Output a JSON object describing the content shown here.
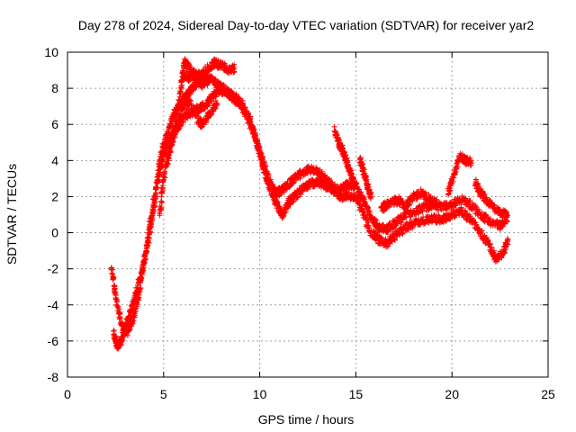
{
  "chart_data": {
    "type": "scatter",
    "title": "Day 278 of 2024, Sidereal Day-to-day VTEC variation (SDTVAR) for receiver yar2",
    "xlabel": "GPS time / hours",
    "ylabel": "SDTVAR / TECUs",
    "xlim": [
      0,
      25
    ],
    "ylim": [
      -8,
      10
    ],
    "xticks": [
      0,
      5,
      10,
      15,
      20,
      25
    ],
    "yticks": [
      -8,
      -6,
      -4,
      -2,
      0,
      2,
      4,
      6,
      8,
      10
    ],
    "grid": true,
    "marker": "+",
    "color": "#ff0000",
    "series": [
      {
        "name": "yar2",
        "note": "approximate traced bands of the dense point cloud",
        "bands": [
          [
            [
              2.3,
              -2.0
            ],
            [
              2.5,
              -3.5
            ],
            [
              2.8,
              -5.0
            ],
            [
              3.1,
              -5.5
            ],
            [
              3.4,
              -4.8
            ],
            [
              3.7,
              -3.5
            ],
            [
              4.0,
              -1.5
            ],
            [
              4.3,
              0.5
            ],
            [
              4.6,
              2.5
            ],
            [
              4.9,
              4.5
            ],
            [
              5.2,
              5.5
            ],
            [
              5.5,
              6.5
            ],
            [
              5.8,
              7.0
            ],
            [
              6.1,
              7.5
            ],
            [
              6.5,
              8.0
            ],
            [
              6.9,
              8.5
            ],
            [
              7.3,
              8.6
            ],
            [
              7.7,
              8.3
            ],
            [
              8.1,
              8.0
            ],
            [
              8.5,
              7.6
            ],
            [
              8.9,
              7.2
            ],
            [
              9.3,
              6.5
            ],
            [
              9.7,
              5.5
            ],
            [
              10.0,
              4.5
            ],
            [
              10.3,
              3.5
            ],
            [
              10.6,
              2.6
            ],
            [
              10.9,
              2.2
            ],
            [
              11.2,
              2.4
            ],
            [
              11.5,
              2.7
            ],
            [
              11.8,
              3.0
            ],
            [
              12.2,
              3.3
            ],
            [
              12.6,
              3.5
            ],
            [
              13.0,
              3.4
            ],
            [
              13.4,
              3.0
            ],
            [
              13.8,
              2.5
            ],
            [
              14.2,
              2.4
            ],
            [
              14.6,
              2.7
            ],
            [
              15.0,
              2.6
            ],
            [
              15.4,
              1.8
            ],
            [
              15.8,
              0.8
            ],
            [
              16.2,
              0.3
            ],
            [
              16.6,
              0.2
            ],
            [
              17.0,
              0.5
            ],
            [
              17.5,
              0.9
            ],
            [
              18.0,
              1.2
            ],
            [
              18.5,
              1.4
            ],
            [
              19.0,
              1.5
            ],
            [
              19.5,
              1.4
            ],
            [
              20.0,
              1.6
            ],
            [
              20.5,
              1.9
            ],
            [
              21.0,
              1.5
            ],
            [
              21.5,
              1.0
            ],
            [
              22.0,
              0.6
            ],
            [
              22.5,
              0.4
            ],
            [
              22.9,
              0.8
            ]
          ],
          [
            [
              2.4,
              -5.6
            ],
            [
              2.6,
              -6.3
            ],
            [
              2.8,
              -6.0
            ],
            [
              3.0,
              -5.2
            ],
            [
              3.3,
              -4.3
            ],
            [
              3.6,
              -3.2
            ],
            [
              3.9,
              -2.0
            ],
            [
              4.2,
              -0.5
            ],
            [
              4.5,
              1.5
            ],
            [
              4.8,
              3.5
            ],
            [
              5.1,
              4.8
            ],
            [
              5.4,
              5.2
            ],
            [
              5.7,
              5.8
            ],
            [
              6.0,
              6.3
            ],
            [
              6.3,
              6.6
            ],
            [
              6.7,
              6.8
            ],
            [
              7.1,
              7.0
            ],
            [
              7.5,
              7.5
            ],
            [
              7.9,
              7.9
            ],
            [
              8.3,
              7.8
            ],
            [
              8.7,
              7.5
            ],
            [
              9.1,
              7.1
            ],
            [
              9.5,
              6.2
            ],
            [
              9.8,
              5.2
            ],
            [
              10.1,
              4.0
            ],
            [
              10.4,
              2.8
            ],
            [
              10.7,
              2.0
            ],
            [
              11.0,
              1.3
            ],
            [
              11.2,
              1.0
            ],
            [
              11.5,
              1.7
            ],
            [
              11.8,
              2.0
            ],
            [
              12.2,
              2.4
            ],
            [
              12.6,
              2.7
            ],
            [
              13.0,
              2.8
            ],
            [
              13.4,
              2.6
            ],
            [
              13.8,
              2.4
            ],
            [
              14.2,
              2.0
            ],
            [
              14.6,
              2.1
            ],
            [
              15.0,
              2.0
            ],
            [
              15.4,
              1.0
            ],
            [
              15.8,
              0.0
            ],
            [
              16.2,
              -0.4
            ],
            [
              16.6,
              -0.6
            ],
            [
              17.0,
              -0.2
            ],
            [
              17.5,
              0.2
            ],
            [
              18.0,
              0.5
            ],
            [
              18.5,
              0.7
            ],
            [
              19.0,
              0.8
            ],
            [
              19.5,
              0.7
            ],
            [
              20.0,
              1.0
            ],
            [
              20.5,
              1.2
            ],
            [
              21.0,
              0.7
            ],
            [
              21.5,
              0.0
            ],
            [
              22.0,
              -0.8
            ],
            [
              22.3,
              -1.5
            ],
            [
              22.7,
              -1.0
            ],
            [
              22.9,
              -0.5
            ]
          ],
          [
            [
              4.8,
              1.0
            ],
            [
              5.0,
              3.0
            ],
            [
              5.3,
              4.5
            ],
            [
              5.6,
              6.0
            ],
            [
              5.9,
              8.0
            ],
            [
              6.1,
              9.5
            ],
            [
              6.4,
              9.0
            ],
            [
              6.8,
              8.7
            ],
            [
              7.2,
              9.0
            ],
            [
              7.6,
              9.4
            ],
            [
              8.0,
              9.3
            ],
            [
              8.4,
              9.0
            ],
            [
              8.7,
              9.1
            ]
          ],
          [
            [
              6.0,
              8.8
            ],
            [
              6.3,
              8.6
            ],
            [
              6.6,
              8.7
            ],
            [
              7.0,
              8.2
            ],
            [
              7.4,
              8.4
            ]
          ],
          [
            [
              5.2,
              4.0
            ],
            [
              5.6,
              5.5
            ],
            [
              5.9,
              6.8
            ],
            [
              6.3,
              7.3
            ],
            [
              6.8,
              6.2
            ],
            [
              7.0,
              6.0
            ],
            [
              7.4,
              6.6
            ],
            [
              7.8,
              7.2
            ]
          ],
          [
            [
              13.9,
              5.7
            ],
            [
              14.1,
              5.0
            ],
            [
              14.3,
              4.6
            ],
            [
              14.5,
              4.0
            ],
            [
              14.7,
              3.4
            ],
            [
              14.9,
              2.8
            ]
          ],
          [
            [
              15.2,
              4.1
            ],
            [
              15.4,
              3.4
            ],
            [
              15.6,
              2.6
            ],
            [
              15.8,
              2.0
            ]
          ],
          [
            [
              19.8,
              2.2
            ],
            [
              20.1,
              3.2
            ],
            [
              20.4,
              4.3
            ],
            [
              20.7,
              4.0
            ],
            [
              21.0,
              3.9
            ]
          ],
          [
            [
              21.2,
              2.8
            ],
            [
              21.5,
              2.2
            ],
            [
              21.8,
              1.8
            ],
            [
              22.2,
              1.3
            ],
            [
              22.6,
              1.1
            ],
            [
              22.9,
              1.0
            ]
          ],
          [
            [
              16.3,
              1.3
            ],
            [
              16.7,
              1.6
            ],
            [
              17.2,
              1.8
            ],
            [
              17.6,
              1.5
            ],
            [
              18.0,
              2.0
            ],
            [
              18.4,
              2.2
            ],
            [
              18.8,
              1.9
            ],
            [
              19.2,
              1.6
            ]
          ]
        ]
      }
    ]
  }
}
